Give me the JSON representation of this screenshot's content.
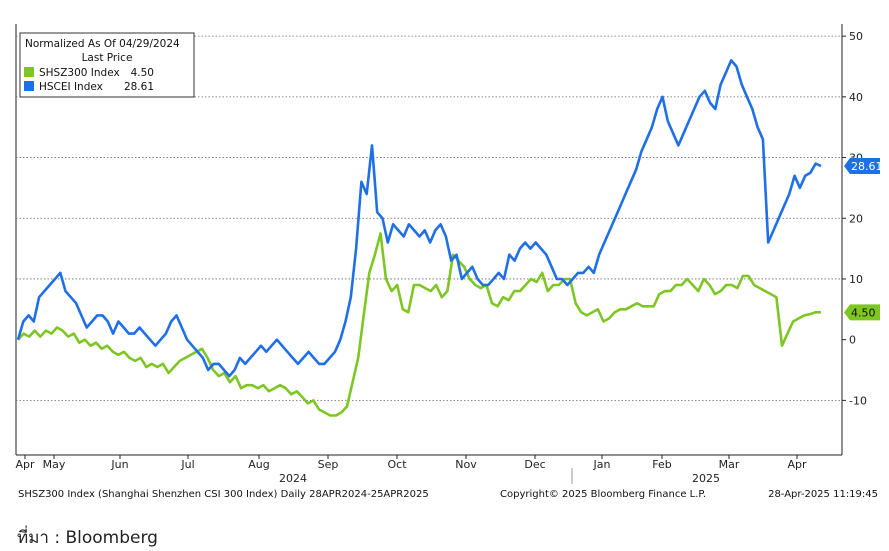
{
  "chart_data": {
    "type": "line",
    "title": "",
    "legend": {
      "header_line1": "Normalized As Of 04/29/2024",
      "header_line2": "Last Price",
      "placement": "top-left",
      "entries": [
        {
          "name": "SHSZ300 Index",
          "last": "4.50",
          "color": "#7ec623"
        },
        {
          "name": "HSCEI Index",
          "last": "28.61",
          "color": "#1f6fe6"
        }
      ]
    },
    "y_axis": {
      "position": "right",
      "range": [
        -19,
        52
      ],
      "ticks": [
        50,
        40,
        30,
        20,
        10,
        0,
        -10
      ],
      "grid": true
    },
    "x_axis": {
      "month_labels": [
        "Apr",
        "May",
        "Jun",
        "Jul",
        "Aug",
        "Sep",
        "Oct",
        "Nov",
        "Dec",
        "Jan",
        "Feb",
        "Mar",
        "Apr"
      ],
      "year_labels": [
        "2024",
        "2025"
      ]
    },
    "series": [
      {
        "name": "SHSZ300 Index",
        "color": "#7ec623",
        "last_label": "4.50",
        "values": [
          0,
          1,
          0.5,
          1.5,
          0.5,
          1.5,
          1,
          2,
          1.5,
          0.5,
          1,
          -0.5,
          0,
          -1,
          -0.5,
          -1.5,
          -1,
          -2,
          -2.5,
          -2,
          -3,
          -3.5,
          -3,
          -4.5,
          -4,
          -4.5,
          -4,
          -5.5,
          -4.5,
          -3.5,
          -3,
          -2.5,
          -2,
          -1.5,
          -3,
          -5,
          -6,
          -5.5,
          -7,
          -6,
          -8,
          -7.5,
          -7.5,
          -8,
          -7.5,
          -8.5,
          -8,
          -7.5,
          -8,
          -9,
          -8.5,
          -9.5,
          -10.5,
          -10,
          -11.5,
          -12,
          -12.5,
          -12.5,
          -12,
          -11,
          -7,
          -3,
          4,
          11,
          14,
          17.5,
          10,
          8,
          9,
          5,
          4.5,
          9,
          9,
          8.5,
          8,
          9,
          7,
          8,
          14,
          13,
          12,
          10,
          9,
          8.5,
          9,
          6,
          5.5,
          7,
          6.5,
          8,
          8,
          9,
          10,
          9.5,
          11,
          8,
          9,
          9,
          10,
          10,
          6,
          4.5,
          4,
          4.5,
          5,
          3,
          3.5,
          4.5,
          5,
          5,
          5.5,
          6,
          5.5,
          5.5,
          5.5,
          7.5,
          8,
          8,
          9,
          9,
          10,
          9,
          8,
          10,
          9,
          7.5,
          8,
          9,
          9,
          8.5,
          10.5,
          10.5,
          9,
          8.5,
          8,
          7.5,
          7,
          -1,
          1,
          3,
          3.5,
          4,
          4.2,
          4.5,
          4.5
        ]
      },
      {
        "name": "HSCEI Index",
        "color": "#1f6fe6",
        "last_label": "28.61",
        "values": [
          0,
          3,
          4,
          3,
          7,
          8,
          9,
          10,
          11,
          8,
          7,
          6,
          4,
          2,
          3,
          4,
          4,
          3,
          1,
          3,
          2,
          1,
          1,
          2,
          1,
          0,
          -1,
          0,
          1,
          3,
          4,
          2,
          0,
          -1,
          -2,
          -3,
          -5,
          -4,
          -4,
          -5,
          -6,
          -5,
          -3,
          -4,
          -3,
          -2,
          -1,
          -2,
          -1,
          0,
          -1,
          -2,
          -3,
          -4,
          -3,
          -2,
          -3,
          -4,
          -4,
          -3,
          -2,
          0,
          3,
          7,
          15,
          26,
          24,
          32,
          21,
          20,
          16,
          19,
          18,
          17,
          19,
          18,
          17,
          18,
          16,
          18,
          19,
          17,
          13,
          14,
          10,
          11,
          12,
          10,
          9,
          9,
          10,
          11,
          10,
          14,
          13,
          15,
          16,
          15,
          16,
          15,
          14,
          12,
          10,
          10,
          9,
          10,
          11,
          11,
          12,
          11,
          14,
          16,
          18,
          20,
          22,
          24,
          26,
          28,
          31,
          33,
          35,
          38,
          40,
          36,
          34,
          32,
          34,
          36,
          38,
          40,
          41,
          39,
          38,
          42,
          44,
          46,
          45,
          42,
          40,
          38,
          35,
          33,
          16,
          18,
          20,
          22,
          24,
          27,
          25,
          27,
          27.5,
          29,
          28.6
        ]
      }
    ],
    "last_value_labels": [
      "28.61",
      "4.50"
    ]
  },
  "footer": {
    "left": "SHSZ300 Index (Shanghai Shenzhen CSI 300 Index)  Daily 28APR2024-25APR2025",
    "center": "Copyright© 2025 Bloomberg Finance L.P.",
    "right": "28-Apr-2025 11:19:45"
  },
  "source": "ที่มา : Bloomberg"
}
